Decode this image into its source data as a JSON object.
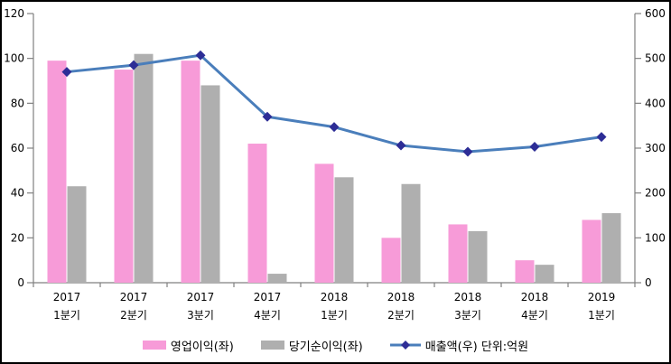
{
  "chart_data": {
    "type": "bar+line",
    "title": "",
    "categories": [
      [
        "2017",
        "1분기"
      ],
      [
        "2017",
        "2분기"
      ],
      [
        "2017",
        "3분기"
      ],
      [
        "2017",
        "4분기"
      ],
      [
        "2018",
        "1분기"
      ],
      [
        "2018",
        "2분기"
      ],
      [
        "2018",
        "3분기"
      ],
      [
        "2018",
        "4분기"
      ],
      [
        "2019",
        "1분기"
      ]
    ],
    "series": [
      {
        "name": "영업이익(좌)",
        "type": "bar",
        "axis": "left",
        "color": "#F79BD8",
        "values": [
          99,
          95,
          99,
          62,
          53,
          20,
          26,
          10,
          28
        ]
      },
      {
        "name": "당기순이익(좌)",
        "type": "bar",
        "axis": "left",
        "color": "#AFAFAF",
        "values": [
          43,
          102,
          88,
          4,
          47,
          44,
          23,
          8,
          31
        ]
      },
      {
        "name": "매출액(우) 단위:억원",
        "type": "line",
        "axis": "right",
        "color": "#4A7EBB",
        "marker": "diamond",
        "marker_color": "#2D2D96",
        "values": [
          470,
          485,
          507,
          370,
          347,
          306,
          292,
          303,
          325
        ]
      }
    ],
    "left_axis": {
      "min": 0,
      "max": 120,
      "step": 20,
      "tick_labels": [
        "0",
        "20",
        "40",
        "60",
        "80",
        "100",
        "120"
      ]
    },
    "right_axis": {
      "min": 0,
      "max": 600,
      "step": 100,
      "tick_labels": [
        "0",
        "100",
        "200",
        "300",
        "400",
        "500",
        "600"
      ]
    },
    "legend_position": "bottom",
    "grid": false,
    "colors": {
      "axis": "#808080",
      "text": "#000000",
      "background": "#FFFFFF",
      "border": "#000000"
    }
  }
}
